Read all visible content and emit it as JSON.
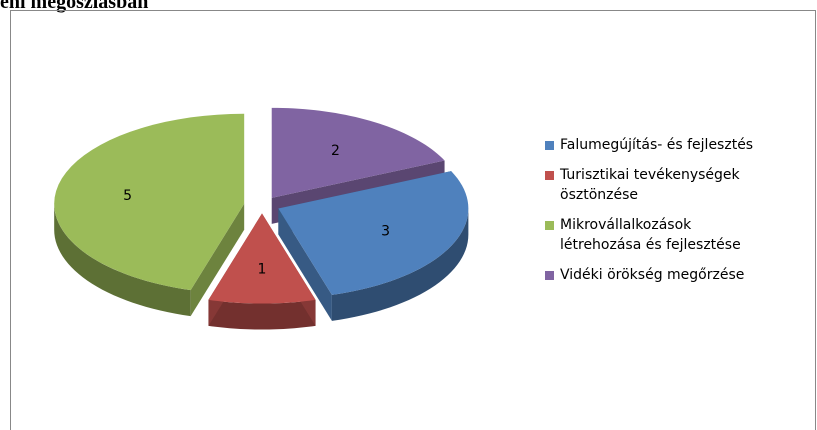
{
  "chart_data": {
    "type": "pie",
    "title": "ení megoszlásban",
    "categories": [
      "Falumegújítás- és fejlesztés",
      "Turisztikai tevékenységek ösztönzése",
      "Mikrovállalkozások létrehozása és fejlesztése",
      "Vidéki örökség megőrzése"
    ],
    "values": [
      3,
      1,
      5,
      2
    ],
    "colors": [
      "#4f81bd",
      "#c0504d",
      "#9bbb59",
      "#8064a2"
    ],
    "legend": "right"
  }
}
